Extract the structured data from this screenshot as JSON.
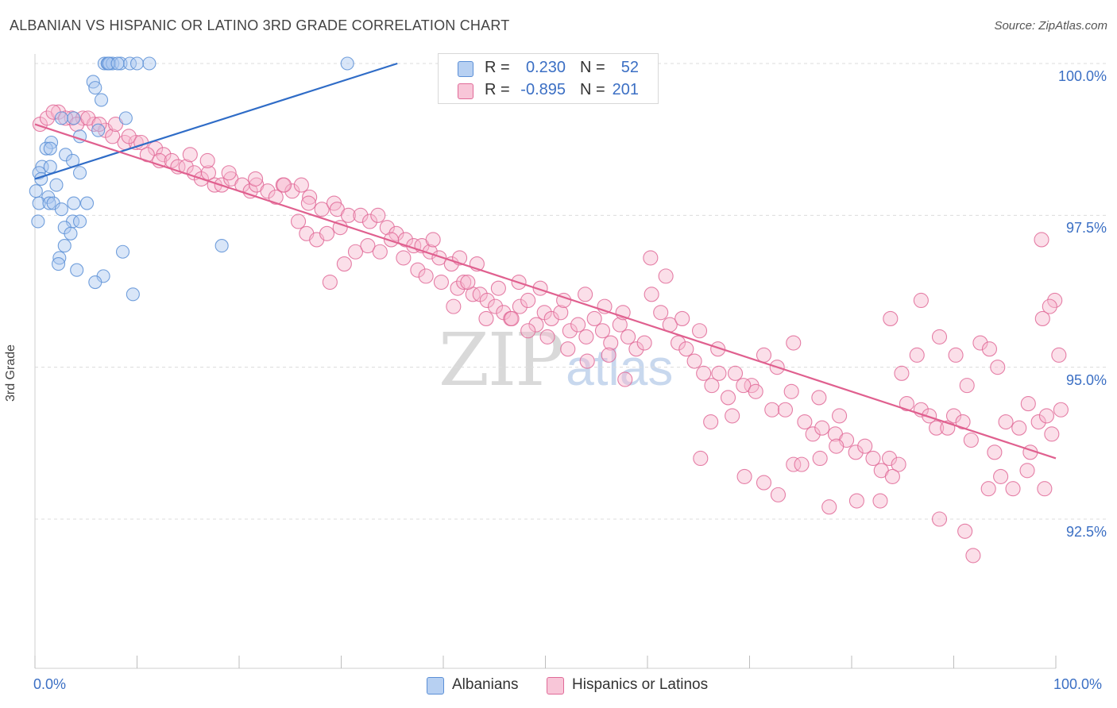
{
  "header": {
    "title": "ALBANIAN VS HISPANIC OR LATINO 3RD GRADE CORRELATION CHART",
    "source": "Source: ZipAtlas.com"
  },
  "watermark": {
    "zip": "ZIP",
    "atlas": "atlas"
  },
  "legend_top": {
    "rows": [
      {
        "r_label": "R =",
        "r_value": "0.230",
        "n_label": "N =",
        "n_value": "52"
      },
      {
        "r_label": "R =",
        "r_value": "-0.895",
        "n_label": "N =",
        "n_value": "201"
      }
    ]
  },
  "chart_data": {
    "type": "scatter",
    "title": "ALBANIAN VS HISPANIC OR LATINO 3RD GRADE CORRELATION CHART",
    "xlabel": "",
    "ylabel": "3rd Grade",
    "xlim": [
      0,
      100
    ],
    "ylim": [
      90.0,
      100.2
    ],
    "x_tick_labels": {
      "left": "0.0%",
      "right": "100.0%"
    },
    "y_ticks": [
      {
        "value": 100.0,
        "label": "100.0%"
      },
      {
        "value": 97.5,
        "label": "97.5%"
      },
      {
        "value": 95.0,
        "label": "95.0%"
      },
      {
        "value": 92.5,
        "label": "92.5%"
      }
    ],
    "grid": true,
    "legend_position": "bottom-center",
    "series": [
      {
        "name": "Albanians",
        "color": "#5b8fd6",
        "fill": "#aac8f0",
        "r": 0.23,
        "n": 52,
        "trend": {
          "x": [
            0,
            35.5
          ],
          "y": [
            98.1,
            100.0
          ]
        },
        "points": [
          [
            6.8,
            100
          ],
          [
            7.1,
            100
          ],
          [
            7.3,
            100
          ],
          [
            7.6,
            100
          ],
          [
            8.4,
            100
          ],
          [
            7.2,
            100
          ],
          [
            9.3,
            100
          ],
          [
            10.0,
            100
          ],
          [
            11.2,
            100
          ],
          [
            8.1,
            100
          ],
          [
            30.6,
            100
          ],
          [
            5.7,
            99.7
          ],
          [
            5.9,
            99.6
          ],
          [
            6.5,
            99.4
          ],
          [
            2.6,
            99.1
          ],
          [
            3.8,
            99.1
          ],
          [
            8.9,
            99.1
          ],
          [
            6.2,
            98.9
          ],
          [
            4.4,
            98.8
          ],
          [
            1.6,
            98.7
          ],
          [
            1.1,
            98.6
          ],
          [
            1.5,
            98.6
          ],
          [
            3.0,
            98.5
          ],
          [
            3.7,
            98.4
          ],
          [
            0.7,
            98.3
          ],
          [
            1.5,
            98.3
          ],
          [
            0.4,
            98.2
          ],
          [
            4.4,
            98.2
          ],
          [
            0.6,
            98.1
          ],
          [
            2.1,
            98.0
          ],
          [
            1.3,
            97.8
          ],
          [
            0.4,
            97.7
          ],
          [
            1.4,
            97.7
          ],
          [
            1.8,
            97.7
          ],
          [
            3.8,
            97.7
          ],
          [
            5.1,
            97.7
          ],
          [
            2.6,
            97.6
          ],
          [
            0.3,
            97.4
          ],
          [
            3.7,
            97.4
          ],
          [
            4.4,
            97.4
          ],
          [
            2.9,
            97.3
          ],
          [
            3.5,
            97.2
          ],
          [
            2.9,
            97.0
          ],
          [
            18.3,
            97.0
          ],
          [
            8.6,
            96.9
          ],
          [
            2.4,
            96.8
          ],
          [
            2.3,
            96.7
          ],
          [
            4.1,
            96.6
          ],
          [
            6.7,
            96.5
          ],
          [
            5.9,
            96.4
          ],
          [
            9.6,
            96.2
          ],
          [
            0.1,
            97.9
          ]
        ]
      },
      {
        "name": "Hispanics or Latinos",
        "color": "#e06a98",
        "fill": "#f6b8cf",
        "r": -0.895,
        "n": 201,
        "trend": {
          "x": [
            0,
            100
          ],
          "y": [
            99.0,
            93.5
          ]
        },
        "points": [
          [
            0.5,
            99.0
          ],
          [
            1.2,
            99.1
          ],
          [
            2.3,
            99.2
          ],
          [
            3.6,
            99.1
          ],
          [
            4.7,
            99.1
          ],
          [
            5.8,
            99.0
          ],
          [
            6.9,
            98.9
          ],
          [
            7.6,
            98.8
          ],
          [
            8.8,
            98.7
          ],
          [
            9.9,
            98.7
          ],
          [
            1.8,
            99.2
          ],
          [
            3.0,
            99.1
          ],
          [
            4.1,
            99.0
          ],
          [
            5.2,
            99.1
          ],
          [
            6.3,
            99.0
          ],
          [
            7.9,
            99.0
          ],
          [
            9.2,
            98.8
          ],
          [
            10.4,
            98.7
          ],
          [
            11.8,
            98.6
          ],
          [
            12.6,
            98.5
          ],
          [
            11.0,
            98.5
          ],
          [
            12.2,
            98.4
          ],
          [
            13.4,
            98.4
          ],
          [
            14.0,
            98.3
          ],
          [
            14.8,
            98.3
          ],
          [
            15.6,
            98.2
          ],
          [
            16.3,
            98.1
          ],
          [
            17.0,
            98.2
          ],
          [
            17.6,
            98.0
          ],
          [
            18.3,
            98.0
          ],
          [
            19.2,
            98.1
          ],
          [
            20.3,
            98.0
          ],
          [
            21.1,
            97.9
          ],
          [
            21.7,
            98.0
          ],
          [
            22.8,
            97.9
          ],
          [
            23.6,
            97.8
          ],
          [
            24.3,
            98.0
          ],
          [
            25.2,
            97.9
          ],
          [
            26.1,
            98.0
          ],
          [
            26.9,
            97.8
          ],
          [
            15.2,
            98.5
          ],
          [
            16.9,
            98.4
          ],
          [
            19.0,
            98.2
          ],
          [
            21.6,
            98.1
          ],
          [
            24.4,
            98.0
          ],
          [
            26.8,
            97.7
          ],
          [
            28.1,
            97.6
          ],
          [
            29.3,
            97.7
          ],
          [
            29.6,
            97.6
          ],
          [
            30.7,
            97.5
          ],
          [
            31.9,
            97.5
          ],
          [
            32.8,
            97.4
          ],
          [
            33.6,
            97.5
          ],
          [
            34.5,
            97.3
          ],
          [
            35.4,
            97.2
          ],
          [
            36.3,
            97.1
          ],
          [
            37.1,
            97.0
          ],
          [
            37.9,
            97.0
          ],
          [
            38.7,
            96.9
          ],
          [
            39.6,
            96.8
          ],
          [
            25.8,
            97.4
          ],
          [
            26.6,
            97.2
          ],
          [
            27.6,
            97.1
          ],
          [
            28.6,
            97.2
          ],
          [
            29.9,
            97.3
          ],
          [
            31.4,
            96.9
          ],
          [
            32.6,
            97.0
          ],
          [
            33.8,
            96.9
          ],
          [
            34.9,
            97.1
          ],
          [
            36.1,
            96.8
          ],
          [
            30.3,
            96.7
          ],
          [
            28.9,
            96.4
          ],
          [
            37.5,
            96.6
          ],
          [
            38.3,
            96.5
          ],
          [
            39.8,
            96.4
          ],
          [
            40.8,
            96.7
          ],
          [
            41.4,
            96.3
          ],
          [
            42.0,
            96.4
          ],
          [
            42.9,
            96.2
          ],
          [
            43.6,
            96.2
          ],
          [
            44.3,
            96.1
          ],
          [
            45.1,
            96.0
          ],
          [
            45.9,
            95.9
          ],
          [
            46.6,
            95.8
          ],
          [
            47.5,
            96.0
          ],
          [
            48.3,
            96.1
          ],
          [
            49.1,
            95.7
          ],
          [
            49.9,
            95.9
          ],
          [
            50.6,
            95.8
          ],
          [
            51.5,
            95.9
          ],
          [
            52.4,
            95.6
          ],
          [
            53.2,
            95.7
          ],
          [
            54.0,
            95.5
          ],
          [
            54.8,
            95.8
          ],
          [
            55.6,
            95.6
          ],
          [
            56.4,
            95.4
          ],
          [
            57.3,
            95.7
          ],
          [
            58.1,
            95.5
          ],
          [
            58.9,
            95.3
          ],
          [
            59.7,
            95.4
          ],
          [
            39.0,
            97.1
          ],
          [
            41.6,
            96.8
          ],
          [
            43.3,
            96.7
          ],
          [
            45.4,
            96.3
          ],
          [
            47.4,
            96.4
          ],
          [
            49.5,
            96.3
          ],
          [
            51.8,
            96.1
          ],
          [
            53.9,
            96.2
          ],
          [
            55.8,
            96.0
          ],
          [
            57.6,
            95.9
          ],
          [
            41.0,
            96.0
          ],
          [
            42.4,
            96.4
          ],
          [
            44.2,
            95.8
          ],
          [
            46.7,
            95.8
          ],
          [
            48.3,
            95.6
          ],
          [
            50.2,
            95.5
          ],
          [
            52.2,
            95.3
          ],
          [
            54.1,
            95.1
          ],
          [
            56.2,
            95.2
          ],
          [
            57.8,
            94.8
          ],
          [
            60.4,
            96.2
          ],
          [
            61.3,
            95.9
          ],
          [
            62.2,
            95.7
          ],
          [
            63.0,
            95.4
          ],
          [
            63.8,
            95.3
          ],
          [
            64.6,
            95.1
          ],
          [
            65.5,
            94.9
          ],
          [
            66.3,
            94.7
          ],
          [
            67.0,
            94.9
          ],
          [
            67.9,
            94.5
          ],
          [
            60.3,
            96.8
          ],
          [
            61.8,
            96.5
          ],
          [
            63.4,
            95.8
          ],
          [
            65.1,
            95.6
          ],
          [
            66.9,
            95.3
          ],
          [
            68.6,
            94.9
          ],
          [
            70.2,
            94.7
          ],
          [
            71.4,
            95.2
          ],
          [
            72.7,
            95.0
          ],
          [
            74.1,
            94.6
          ],
          [
            66.2,
            94.1
          ],
          [
            68.3,
            94.2
          ],
          [
            69.4,
            94.7
          ],
          [
            70.6,
            94.6
          ],
          [
            72.2,
            94.3
          ],
          [
            73.5,
            94.3
          ],
          [
            75.4,
            94.1
          ],
          [
            76.2,
            93.9
          ],
          [
            77.1,
            94.0
          ],
          [
            78.8,
            94.2
          ],
          [
            74.3,
            95.4
          ],
          [
            76.8,
            94.5
          ],
          [
            78.4,
            93.9
          ],
          [
            79.5,
            93.8
          ],
          [
            80.4,
            93.6
          ],
          [
            81.3,
            93.7
          ],
          [
            82.1,
            93.5
          ],
          [
            82.9,
            93.3
          ],
          [
            83.7,
            93.5
          ],
          [
            84.6,
            93.4
          ],
          [
            65.2,
            93.5
          ],
          [
            69.5,
            93.2
          ],
          [
            71.4,
            93.1
          ],
          [
            72.8,
            92.9
          ],
          [
            74.3,
            93.4
          ],
          [
            75.1,
            93.4
          ],
          [
            76.9,
            93.5
          ],
          [
            77.8,
            92.7
          ],
          [
            78.5,
            93.7
          ],
          [
            80.5,
            92.8
          ],
          [
            82.8,
            92.8
          ],
          [
            84.0,
            93.2
          ],
          [
            85.4,
            94.4
          ],
          [
            86.8,
            94.3
          ],
          [
            87.6,
            94.2
          ],
          [
            88.3,
            94.0
          ],
          [
            89.4,
            94.0
          ],
          [
            90.0,
            94.2
          ],
          [
            90.9,
            94.1
          ],
          [
            91.7,
            93.8
          ],
          [
            84.9,
            94.9
          ],
          [
            86.4,
            95.2
          ],
          [
            88.6,
            95.5
          ],
          [
            90.2,
            95.2
          ],
          [
            91.3,
            94.7
          ],
          [
            92.6,
            95.4
          ],
          [
            94.0,
            93.6
          ],
          [
            95.1,
            94.1
          ],
          [
            96.4,
            94.0
          ],
          [
            97.5,
            93.6
          ],
          [
            83.8,
            95.8
          ],
          [
            86.8,
            96.1
          ],
          [
            93.5,
            95.3
          ],
          [
            94.3,
            95.0
          ],
          [
            98.3,
            94.1
          ],
          [
            99.1,
            94.2
          ],
          [
            99.6,
            93.9
          ],
          [
            98.7,
            95.8
          ],
          [
            100.3,
            95.2
          ],
          [
            100.5,
            94.3
          ],
          [
            88.6,
            92.5
          ],
          [
            91.1,
            92.3
          ],
          [
            91.9,
            91.9
          ],
          [
            93.4,
            93.0
          ],
          [
            94.6,
            93.2
          ],
          [
            95.8,
            93.0
          ],
          [
            97.2,
            93.3
          ],
          [
            98.9,
            93.0
          ],
          [
            99.9,
            96.1
          ],
          [
            99.4,
            96.0
          ],
          [
            97.3,
            94.4
          ],
          [
            98.6,
            97.1
          ]
        ]
      }
    ]
  },
  "legend_bottom": {
    "items": [
      {
        "label": "Albanians"
      },
      {
        "label": "Hispanics or Latinos"
      }
    ]
  }
}
